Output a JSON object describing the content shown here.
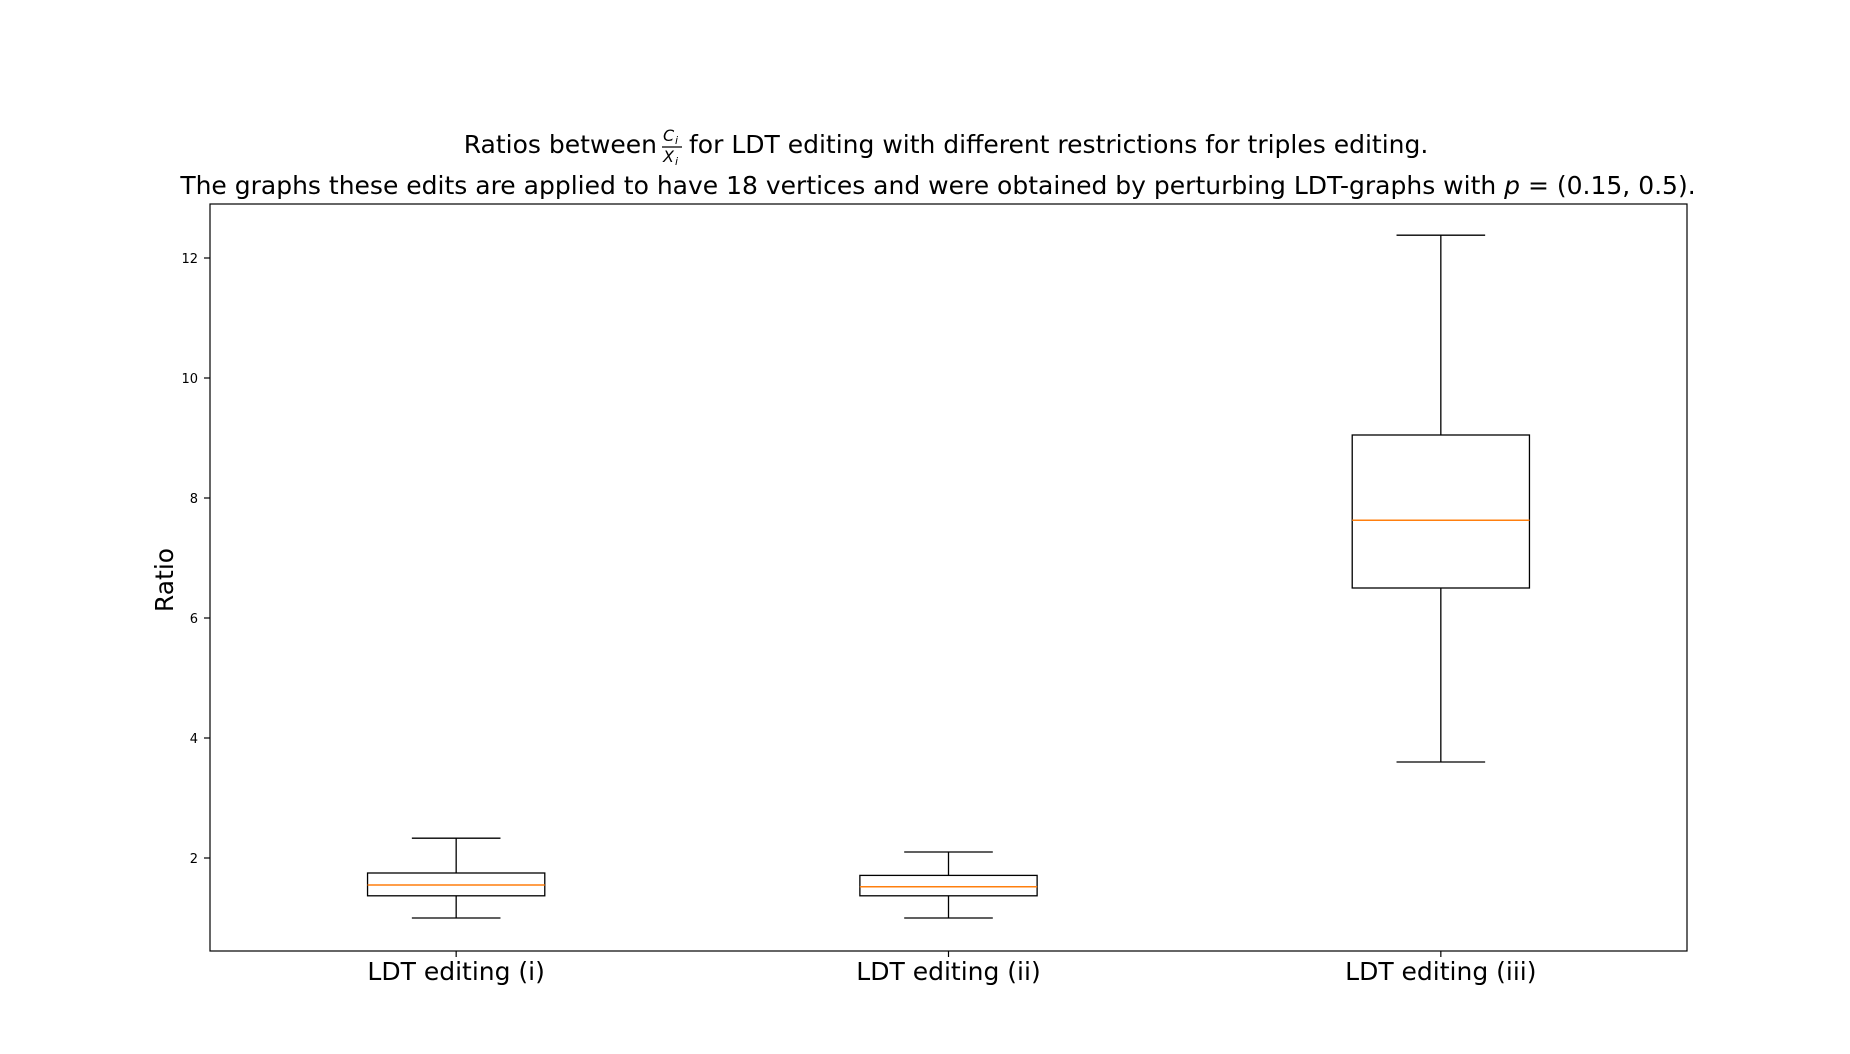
{
  "chart_data": {
    "type": "box",
    "title": {
      "line1_before": "Ratios between",
      "fraction_numerator": "C",
      "fraction_numerator_sub": "i",
      "fraction_denominator": "X",
      "fraction_denominator_sub": "i",
      "line1_after": "for LDT editing with different restrictions for triples editing.",
      "line2_before": "The graphs these edits are applied to have 18 vertices and were obtained by perturbing LDT-graphs with",
      "line2_var": "p",
      "line2_after": " = (0.15, 0.5)."
    },
    "xlabel": "",
    "ylabel": "Ratio",
    "ylim": [
      0.45,
      12.9
    ],
    "yticks": [
      2,
      4,
      6,
      8,
      10,
      12
    ],
    "categories": [
      "LDT editing (i)",
      "LDT editing (ii)",
      "LDT editing (iii)"
    ],
    "boxes": [
      {
        "whisker_low": 1.0,
        "q1": 1.37,
        "median": 1.55,
        "q3": 1.75,
        "whisker_high": 2.33
      },
      {
        "whisker_low": 1.0,
        "q1": 1.37,
        "median": 1.52,
        "q3": 1.71,
        "whisker_high": 2.1
      },
      {
        "whisker_low": 3.6,
        "q1": 6.5,
        "median": 7.63,
        "q3": 9.05,
        "whisker_high": 12.38
      }
    ],
    "grid": false,
    "colors": {
      "box": "#000000",
      "median": "#ff7f0e"
    }
  }
}
